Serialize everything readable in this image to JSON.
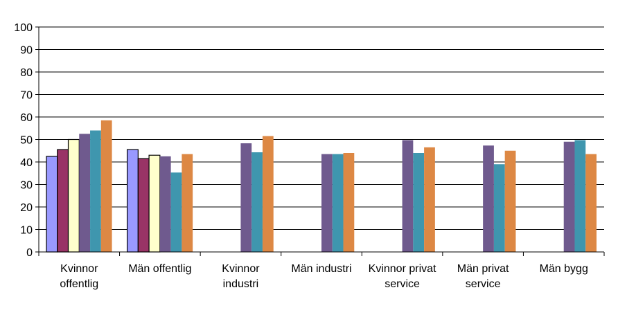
{
  "chart_data": {
    "type": "bar",
    "title": "",
    "xlabel": "",
    "ylabel": "",
    "ylim": [
      0,
      100
    ],
    "yticks": [
      0,
      10,
      20,
      30,
      40,
      50,
      60,
      70,
      80,
      90,
      100
    ],
    "grid": true,
    "legend": "none",
    "categories": [
      [
        "Kvinnor",
        "offentlig"
      ],
      [
        "Män offentlig"
      ],
      [
        "Kvinnor",
        "industri"
      ],
      [
        "Män industri"
      ],
      [
        "Kvinnor privat",
        "service"
      ],
      [
        "Män privat",
        "service"
      ],
      [
        "Män bygg"
      ]
    ],
    "series": [
      {
        "color": "#9999FF",
        "outlined": true,
        "values": [
          42.5,
          45.5,
          null,
          null,
          null,
          null,
          null
        ]
      },
      {
        "color": "#993366",
        "outlined": true,
        "values": [
          45.5,
          41.5,
          null,
          null,
          null,
          null,
          null
        ]
      },
      {
        "color": "#FFFFCC",
        "outlined": true,
        "values": [
          50,
          43,
          null,
          null,
          null,
          null,
          null
        ]
      },
      {
        "color": "#6F5A8E",
        "outlined": false,
        "values": [
          52.5,
          42.5,
          48.3,
          43.5,
          49.7,
          47.3,
          49
        ]
      },
      {
        "color": "#3F96AE",
        "outlined": false,
        "values": [
          54,
          35.3,
          44.3,
          43.5,
          44,
          39,
          49.7
        ]
      },
      {
        "color": "#DD8844",
        "outlined": false,
        "values": [
          58.5,
          43.5,
          51.5,
          44,
          46.5,
          45,
          43.5
        ]
      }
    ]
  }
}
